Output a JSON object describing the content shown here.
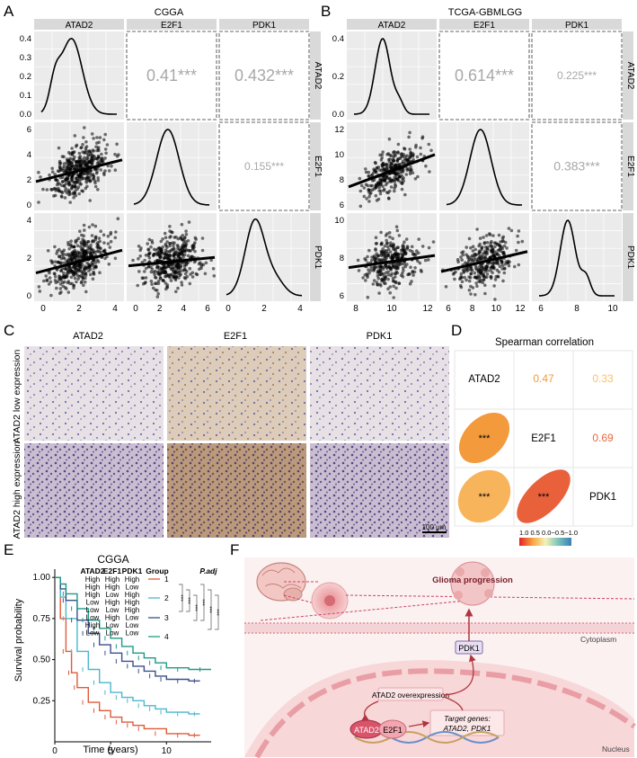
{
  "panels": {
    "A": "A",
    "B": "B",
    "C": "C",
    "D": "D",
    "E": "E",
    "F": "F"
  },
  "panelA": {
    "title": "CGGA",
    "genes": [
      "ATAD2",
      "E2F1",
      "PDK1"
    ],
    "corr": [
      {
        "pair": "ATAD2-E2F1",
        "label": "0.41***"
      },
      {
        "pair": "ATAD2-PDK1",
        "label": "0.432***"
      },
      {
        "pair": "E2F1-PDK1",
        "label": "0.155***"
      }
    ],
    "xticks": {
      "ATAD2": [
        "0",
        "2",
        "4"
      ],
      "E2F1": [
        "0",
        "2",
        "4",
        "6"
      ],
      "PDK1": [
        "0",
        "2",
        "4"
      ]
    },
    "yticks": {
      "ATAD2": [
        "0.0",
        "0.1",
        "0.2",
        "0.3",
        "0.4"
      ],
      "E2F1": [
        "0",
        "2",
        "4",
        "6"
      ],
      "PDK1": [
        "0",
        "2",
        "4"
      ]
    }
  },
  "panelB": {
    "title": "TCGA-GBMLGG",
    "genes": [
      "ATAD2",
      "E2F1",
      "PDK1"
    ],
    "corr": [
      {
        "pair": "ATAD2-E2F1",
        "label": "0.614***"
      },
      {
        "pair": "ATAD2-PDK1",
        "label": "0.225***"
      },
      {
        "pair": "E2F1-PDK1",
        "label": "0.383***"
      }
    ],
    "xticks": {
      "ATAD2": [
        "8",
        "10",
        "12"
      ],
      "E2F1": [
        "6",
        "8",
        "10",
        "12"
      ],
      "PDK1": [
        "6",
        "8",
        "10"
      ]
    },
    "yticks": {
      "ATAD2": [
        "0.0",
        "0.2",
        "0.4"
      ],
      "E2F1": [
        "6",
        "8",
        "10",
        "12"
      ],
      "PDK1": [
        "6",
        "8",
        "10"
      ]
    }
  },
  "panelC": {
    "columns": [
      "ATAD2",
      "E2F1",
      "PDK1"
    ],
    "rows": [
      "ATAD2 low expression",
      "ATAD2 high expression"
    ],
    "scalebar": "100 μm"
  },
  "panelD": {
    "title": "Spearman correlation",
    "labels": [
      "ATAD2",
      "E2F1",
      "PDK1"
    ],
    "upper": [
      {
        "pair": "ATAD2-E2F1",
        "value": "0.47",
        "color": "#f39a3c"
      },
      {
        "pair": "ATAD2-PDK1",
        "value": "0.33",
        "color": "#f7c16a"
      },
      {
        "pair": "E2F1-PDK1",
        "value": "0.69",
        "color": "#ea6a3c"
      }
    ],
    "lower": [
      {
        "pair": "E2F1-ATAD2",
        "stars": "***",
        "color": "#f39a3c"
      },
      {
        "pair": "PDK1-ATAD2",
        "stars": "***",
        "color": "#f7b45a"
      },
      {
        "pair": "PDK1-E2F1",
        "stars": "***",
        "color": "#e8613b"
      }
    ],
    "legend": "1.0  0.5  0.0−0.5−1.0"
  },
  "panelE": {
    "title": "CGGA",
    "ylabel": "Survival probability",
    "xlabel": "Time (years)",
    "yticks": [
      "1.00",
      "0.75",
      "0.50",
      "0.25"
    ],
    "xticks": [
      "0",
      "5",
      "10"
    ],
    "table_headers": [
      "ATAD2",
      "E2F1",
      "PDK1",
      "Group",
      "P.adj"
    ],
    "table_rows": [
      [
        "High",
        "High",
        "High"
      ],
      [
        "High",
        "High",
        "Low"
      ],
      [
        "High",
        "Low",
        "High"
      ],
      [
        "Low",
        "High",
        "High"
      ],
      [
        "Low",
        "Low",
        "High"
      ],
      [
        "Low",
        "High",
        "Low"
      ],
      [
        "High",
        "Low",
        "Low"
      ],
      [
        "Low",
        "Low",
        "Low"
      ]
    ],
    "groups": [
      {
        "label": "1",
        "color": "#e05a3a"
      },
      {
        "label": "2",
        "color": "#4cb7cc"
      },
      {
        "label": "3",
        "color": "#3b4f8c"
      },
      {
        "label": "4",
        "color": "#1f9a86"
      }
    ],
    "pstars": [
      "***",
      "***",
      "***",
      "***",
      "***",
      "***"
    ]
  },
  "panelF": {
    "glioma": "Glioma progression",
    "pdk1": "PDK1",
    "cytoplasm": "Cytoplasm",
    "overexp": "ATAD2 overexpression",
    "atad2": "ATAD2",
    "e2f1": "E2F1",
    "targets_title": "Target genes:",
    "targets_list": "ATAD2, PDK1",
    "nucleus": "Nucleus"
  },
  "chart_data": [
    {
      "type": "scatter",
      "title": "CGGA",
      "description": "pairwise density/scatter matrix",
      "series": [
        {
          "name": "ATAD2 vs E2F1",
          "r": 0.41
        },
        {
          "name": "ATAD2 vs PDK1",
          "r": 0.432
        },
        {
          "name": "E2F1 vs PDK1",
          "r": 0.155
        }
      ]
    },
    {
      "type": "scatter",
      "title": "TCGA-GBMLGG",
      "series": [
        {
          "name": "ATAD2 vs E2F1",
          "r": 0.614
        },
        {
          "name": "ATAD2 vs PDK1",
          "r": 0.225
        },
        {
          "name": "E2F1 vs PDK1",
          "r": 0.383
        }
      ]
    },
    {
      "type": "heatmap",
      "title": "Spearman correlation",
      "categories": [
        "ATAD2",
        "E2F1",
        "PDK1"
      ],
      "values": [
        [
          1,
          0.47,
          0.33
        ],
        [
          0.47,
          1,
          0.69
        ],
        [
          0.33,
          0.69,
          1
        ]
      ]
    },
    {
      "type": "line",
      "title": "CGGA",
      "xlabel": "Time (years)",
      "ylabel": "Survival probability",
      "ylim": [
        0,
        1.05
      ],
      "xlim": [
        0,
        14
      ],
      "series": [
        {
          "name": "1",
          "x": [
            0,
            0.5,
            1,
            1.5,
            2,
            3,
            4,
            5,
            6,
            7,
            8,
            10,
            12,
            13
          ],
          "values": [
            1,
            0.75,
            0.55,
            0.42,
            0.33,
            0.24,
            0.19,
            0.15,
            0.12,
            0.1,
            0.08,
            0.05,
            0.04,
            0.04
          ]
        },
        {
          "name": "2",
          "x": [
            0,
            0.5,
            1,
            2,
            3,
            4,
            5,
            6,
            7,
            8,
            9,
            10,
            12,
            13
          ],
          "values": [
            1,
            0.88,
            0.75,
            0.55,
            0.44,
            0.36,
            0.3,
            0.27,
            0.25,
            0.22,
            0.2,
            0.18,
            0.17,
            0.17
          ]
        },
        {
          "name": "3",
          "x": [
            0,
            0.5,
            1,
            2,
            3,
            4,
            5,
            6,
            7,
            8,
            9,
            10,
            12,
            13
          ],
          "values": [
            1,
            0.93,
            0.86,
            0.74,
            0.66,
            0.59,
            0.54,
            0.49,
            0.46,
            0.43,
            0.4,
            0.38,
            0.37,
            0.37
          ]
        },
        {
          "name": "4",
          "x": [
            0,
            0.5,
            1,
            2,
            3,
            4,
            5,
            6,
            7,
            8,
            9,
            10,
            12,
            14
          ],
          "values": [
            1,
            0.96,
            0.9,
            0.81,
            0.74,
            0.69,
            0.63,
            0.58,
            0.54,
            0.51,
            0.48,
            0.45,
            0.44,
            0.44
          ]
        }
      ]
    }
  ]
}
